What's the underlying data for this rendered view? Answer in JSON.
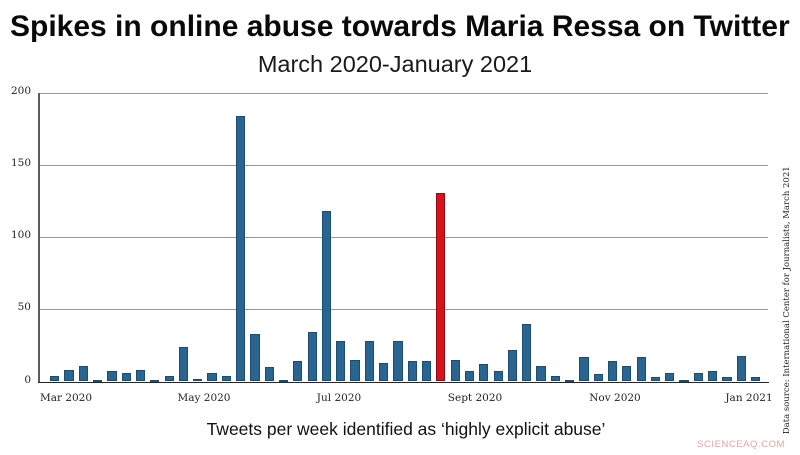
{
  "title": "Spikes in online abuse towards Maria Ressa on Twitter",
  "subtitle": "March 2020-January 2021",
  "caption": "Tweets per week identified as ‘highly explicit abuse’",
  "source_note": "Data source: International Center for Journalists, March 2021",
  "watermark": "SCIENCEAQ.COM",
  "colors": {
    "bar": "#2a6591",
    "bar_edge": "#1a4d70",
    "highlight": "#da1118",
    "highlight_edge": "#8e0d12",
    "gridline": "#9a9a9a",
    "watermark": "#e4a5a2",
    "background": "#ffffff"
  },
  "chart_data": {
    "type": "bar",
    "title": "Spikes in online abuse towards Maria Ressa on Twitter",
    "subtitle": "March 2020-January 2021",
    "xlabel": "Tweets per week identified as ‘highly explicit abuse’",
    "ylabel": "",
    "x_unit": "week",
    "x_tick_labels": [
      "Mar 2020",
      "May 2020",
      "Jul 2020",
      "Sept 2020",
      "Nov 2020",
      "Jan 2021"
    ],
    "y_ticks": [
      0,
      50,
      100,
      150,
      200
    ],
    "ylim": [
      0,
      200
    ],
    "grid": "horizontal",
    "legend": "none",
    "values": [
      4,
      8,
      11,
      1,
      7,
      6,
      8,
      1,
      4,
      24,
      2,
      6,
      4,
      184,
      33,
      10,
      1,
      14,
      34,
      118,
      28,
      15,
      28,
      13,
      28,
      14,
      14,
      131,
      15,
      7,
      12,
      7,
      22,
      40,
      11,
      4,
      1,
      17,
      5,
      14,
      11,
      17,
      3,
      6,
      1,
      6,
      7,
      3,
      18,
      3
    ],
    "highlight_index": 27,
    "highlight_color": "#da1118",
    "bar_color": "#2a6591"
  }
}
